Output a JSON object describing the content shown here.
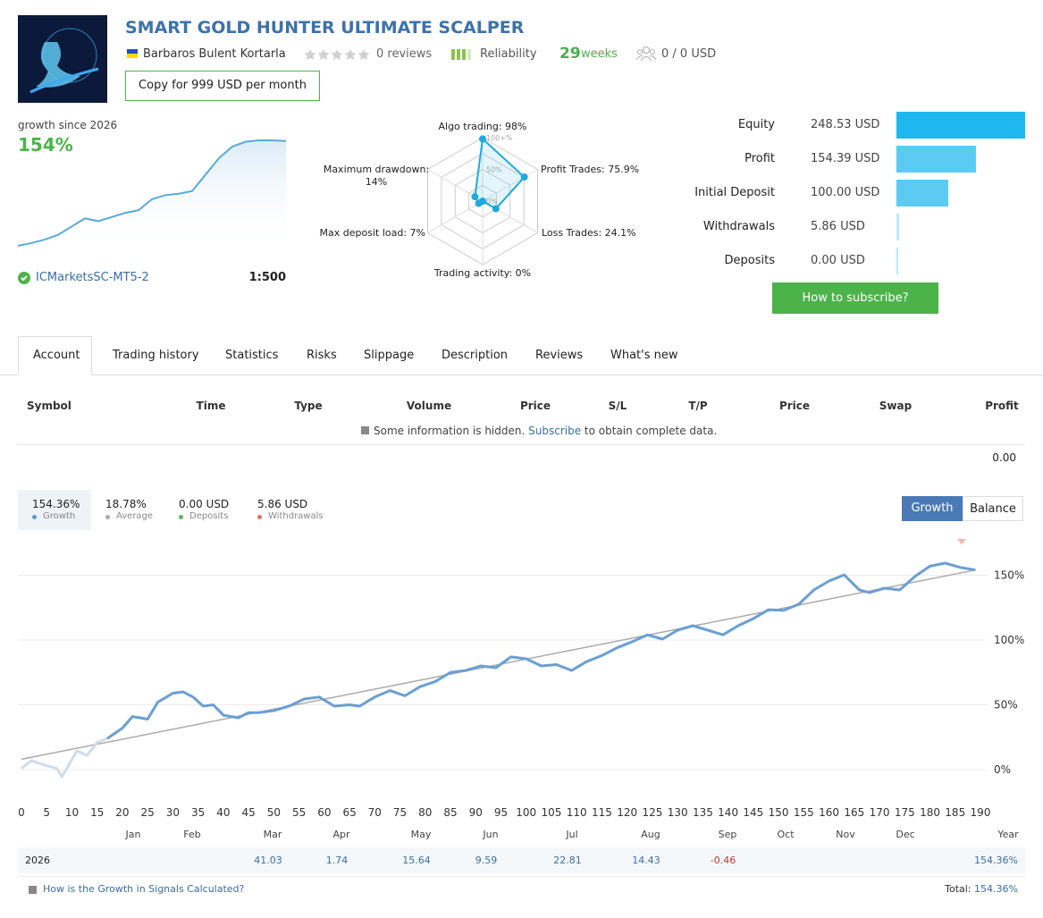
{
  "header": {
    "title": "SMART GOLD HUNTER ULTIMATE SCALPER",
    "author": "Barbaros Bulent Kortarla",
    "reviews": "0 reviews",
    "reliability": "Reliability",
    "weeks": "29",
    "weeks_unit": "weeks",
    "subscribers": "0 / 0 USD",
    "copy_button": "Copy for 999 USD per month"
  },
  "growth_summary": {
    "label": "growth since 2026",
    "value": "154%",
    "broker": "ICMarketsSC-MT5-2",
    "leverage": "1:500",
    "sparkline": {
      "type": "area",
      "color": "#5aaad8",
      "values": [
        0,
        4,
        9,
        16,
        28,
        40,
        36,
        42,
        48,
        52,
        68,
        74,
        76,
        80,
        104,
        128,
        145,
        152,
        154,
        154,
        153
      ]
    }
  },
  "radar": {
    "type": "radar",
    "color": "#1fa9dc",
    "axes": [
      {
        "label": "Algo trading: 98%",
        "value": 98
      },
      {
        "label": "Profit Trades: 75.9%",
        "value": 75.9
      },
      {
        "label": "Loss Trades: 24.1%",
        "value": 24.1
      },
      {
        "label": "Trading activity: 0%",
        "value": 0
      },
      {
        "label": "Max deposit load: 7%",
        "value": 7
      },
      {
        "label": "Maximum drawdown: 14%",
        "value": 14
      }
    ],
    "ticks": [
      {
        "value": 100,
        "label": "100+%"
      },
      {
        "value": 50,
        "label": "50%"
      },
      {
        "value": 0,
        "label": "0%"
      }
    ]
  },
  "balance": {
    "type": "bar",
    "categories": [
      "Equity",
      "Profit",
      "Initial Deposit",
      "Withdrawals",
      "Deposits"
    ],
    "values": [
      248.53,
      154.39,
      100.0,
      5.86,
      0.0
    ],
    "value_labels": [
      "248.53 USD",
      "154.39 USD",
      "100.00 USD",
      "5.86 USD",
      "0.00 USD"
    ],
    "colors": [
      "#1eb7ef",
      "#5ccbf4",
      "#5ccbf4",
      "#bfe8f8",
      "#bfe8f8"
    ]
  },
  "subscribe_button": "How to subscribe?",
  "tabs": {
    "items": [
      "Account",
      "Trading history",
      "Statistics",
      "Risks",
      "Slippage",
      "Description",
      "Reviews",
      "What's new"
    ],
    "active": 0
  },
  "trades_table": {
    "columns": [
      "Symbol",
      "Time",
      "Type",
      "Volume",
      "Price",
      "S/L",
      "T/P",
      "Price",
      "Swap",
      "Profit"
    ],
    "notice": "Some information is hidden.",
    "notice_link": "Subscribe",
    "notice_tail": "to obtain complete data.",
    "total": "0.00"
  },
  "growth_chart": {
    "stats": [
      {
        "value": "154.36%",
        "label": "Growth",
        "color": "#5b9bd5"
      },
      {
        "value": "18.78%",
        "label": "Average",
        "color": "#aaaaaa"
      },
      {
        "value": "0.00 USD",
        "label": "Deposits",
        "color": "#5cb85c"
      },
      {
        "value": "5.86 USD",
        "label": "Withdrawals",
        "color": "#e0735c"
      }
    ],
    "toggle": [
      "Growth",
      "Balance"
    ],
    "active_toggle": 0,
    "chart": {
      "type": "line",
      "xlim": [
        0,
        190
      ],
      "ylim": [
        -23,
        177
      ],
      "xticks": [
        0,
        5,
        10,
        15,
        20,
        25,
        30,
        35,
        40,
        45,
        50,
        55,
        60,
        65,
        70,
        75,
        80,
        85,
        90,
        95,
        100,
        105,
        110,
        115,
        120,
        125,
        130,
        135,
        140,
        145,
        150,
        155,
        160,
        165,
        170,
        175,
        180,
        185,
        190
      ],
      "yticks": [
        {
          "value": 0,
          "label": "0%"
        },
        {
          "value": 50,
          "label": "50%"
        },
        {
          "value": 100,
          "label": "100%"
        },
        {
          "value": 150,
          "label": "150%"
        }
      ],
      "grid": true,
      "series": [
        {
          "color": "#cfdcea",
          "x": [
            0,
            2,
            5,
            7,
            8,
            9,
            11,
            13,
            15,
            17
          ],
          "values": [
            1,
            7,
            3,
            1,
            -5.5,
            1,
            14.5,
            11,
            21,
            24
          ]
        },
        {
          "color": "#6a9fd4",
          "x": [
            17,
            20,
            22,
            25,
            27,
            30,
            32,
            34,
            36,
            38,
            40,
            43,
            45,
            47,
            50,
            53,
            56,
            59,
            62,
            65,
            67,
            70,
            73,
            76,
            79,
            82,
            85,
            88,
            91,
            94,
            97,
            100,
            103,
            106,
            109,
            112,
            115,
            118,
            121,
            124,
            127,
            130,
            133,
            136,
            139,
            142,
            145,
            148,
            151,
            154,
            157,
            160,
            163,
            166,
            168,
            171,
            174,
            177,
            180,
            183,
            186,
            189
          ],
          "values": [
            24,
            32,
            41,
            39,
            52,
            59,
            60,
            56,
            49,
            50,
            42,
            40,
            44,
            44,
            45.5,
            49,
            54.5,
            56,
            49,
            50,
            49,
            56,
            61,
            57,
            64,
            68,
            75,
            76.5,
            80,
            78.6,
            87,
            85.5,
            80,
            81,
            76.5,
            83.4,
            88,
            94,
            98.6,
            104,
            100.7,
            107.6,
            111,
            107.6,
            104,
            111,
            116.5,
            123.4,
            122.8,
            127.6,
            138.6,
            145.5,
            150.3,
            138.6,
            136.6,
            140,
            138.6,
            149,
            157,
            159.3,
            156,
            154
          ]
        },
        {
          "color": "#aaaaaa",
          "x": [
            0,
            189
          ],
          "values": [
            8,
            154
          ]
        }
      ]
    }
  },
  "monthly": {
    "columns": [
      "Jan",
      "Feb",
      "Mar",
      "Apr",
      "May",
      "Jun",
      "Jul",
      "Aug",
      "Sep",
      "Oct",
      "Nov",
      "Dec",
      "Year"
    ],
    "rows": [
      {
        "year": "2026",
        "cells": [
          null,
          null,
          "41.03",
          "1.74",
          "15.64",
          "9.59",
          "22.81",
          "14.43",
          "-0.46",
          null,
          null,
          null,
          "154.36%"
        ]
      }
    ]
  },
  "footer": {
    "link": "How is the Growth in Signals Calculated?",
    "total_label": "Total:",
    "total_value": "154.36%"
  }
}
